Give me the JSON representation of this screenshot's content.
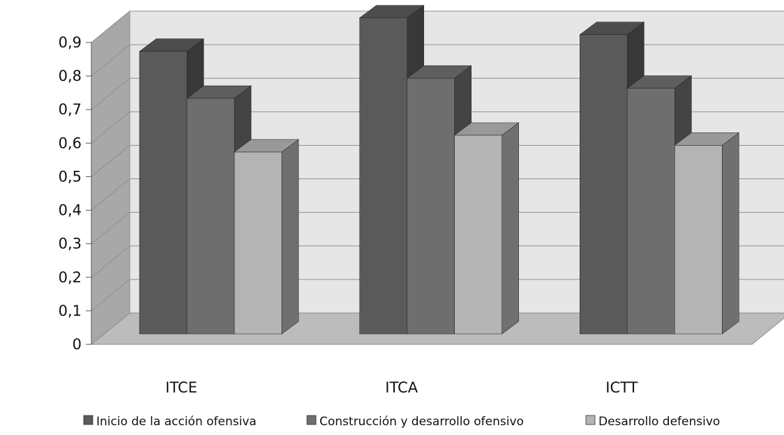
{
  "chart_data": {
    "type": "bar",
    "style": "3d-clustered-column",
    "title": "",
    "xlabel": "",
    "ylabel": "",
    "categories": [
      "ITCE",
      "ITCA",
      "ICTT"
    ],
    "series": [
      {
        "name": "Inicio de la acción ofensiva",
        "values": [
          0.78,
          0.88,
          0.83
        ],
        "color": "#5a5a5a"
      },
      {
        "name": "Construcción y desarrollo ofensivo",
        "values": [
          0.64,
          0.7,
          0.67
        ],
        "color": "#6e6e6e"
      },
      {
        "name": "Desarrollo defensivo",
        "values": [
          0.48,
          0.53,
          0.5
        ],
        "color": "#b4b4b4"
      }
    ],
    "ylim": [
      0,
      0.9
    ],
    "yticks": [
      "0",
      "0,1",
      "0,2",
      "0,3",
      "0,4",
      "0,5",
      "0,6",
      "0,7",
      "0,8",
      "0,9"
    ],
    "grid": true,
    "legend_position": "bottom",
    "wall_color": "#e6e6e6",
    "floor_color": "#bcbcbc",
    "side_wall_color": "#a8a8a8"
  }
}
